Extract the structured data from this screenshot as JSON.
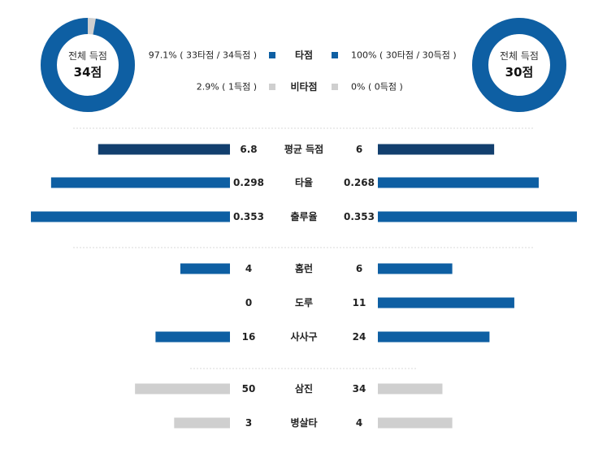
{
  "colors": {
    "primary": "#0e5fa3",
    "dark": "#123f6e",
    "gray": "#cfcfcf",
    "divider": "#d8d8d8"
  },
  "left_donut": {
    "label": "전체 득점",
    "value": "34점",
    "fraction": 0.971
  },
  "right_donut": {
    "label": "전체 득점",
    "value": "30점",
    "fraction": 1.0
  },
  "legend": [
    {
      "name": "타점",
      "left_text": "97.1% ( 33타점 / 34득점 )",
      "right_text": "100% ( 30타점 / 30득점 )",
      "color_key": "primary"
    },
    {
      "name": "비타점",
      "left_text": "2.9% ( 1득점 )",
      "right_text": "0% ( 0득점 )",
      "color_key": "gray"
    }
  ],
  "chart_data": {
    "type": "bar",
    "orientation": "horizontal-mirrored",
    "groups": [
      {
        "rows": [
          {
            "category": "평균 득점",
            "left": 6.8,
            "left_label": "6.8",
            "right": 6,
            "right_label": "6",
            "color_key": "dark",
            "max": 9.6
          },
          {
            "category": "타율",
            "left": 0.298,
            "left_label": "0.298",
            "right": 0.268,
            "right_label": "0.268",
            "color_key": "primary",
            "max": 0.31
          },
          {
            "category": "출루율",
            "left": 0.353,
            "left_label": "0.353",
            "right": 0.353,
            "right_label": "0.353",
            "color_key": "primary",
            "max": 0.33
          }
        ]
      },
      {
        "rows": [
          {
            "category": "홈런",
            "left": 4,
            "left_label": "4",
            "right": 6,
            "right_label": "6",
            "color_key": "primary",
            "max": 15
          },
          {
            "category": "도루",
            "left": 0,
            "left_label": "0",
            "right": 11,
            "right_label": "11",
            "color_key": "primary",
            "max": 15
          },
          {
            "category": "사사구",
            "left": 16,
            "left_label": "16",
            "right": 24,
            "right_label": "24",
            "color_key": "primary",
            "max": 40
          }
        ]
      },
      {
        "rows": [
          {
            "category": "삼진",
            "left": 50,
            "left_label": "50",
            "right": 34,
            "right_label": "34",
            "color_key": "gray",
            "max": 98
          },
          {
            "category": "병살타",
            "left": 3,
            "left_label": "3",
            "right": 4,
            "right_label": "4",
            "color_key": "gray",
            "max": 10
          }
        ]
      }
    ]
  }
}
